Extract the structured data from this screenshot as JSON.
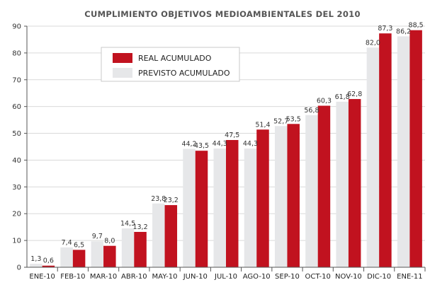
{
  "chart_data": {
    "type": "bar",
    "title": "CUMPLIMIENTO OBJETIVOS MEDIOAMBIENTALES DEL 2010",
    "xlabel": "",
    "ylabel": "",
    "ylim": [
      0,
      90
    ],
    "yticks": [
      0,
      10,
      20,
      30,
      40,
      50,
      60,
      70,
      80,
      90
    ],
    "grid": true,
    "legend_position": "top-left",
    "categories": [
      "ENE-10",
      "FEB-10",
      "MAR-10",
      "ABR-10",
      "MAY-10",
      "JUN-10",
      "JUL-10",
      "AGO-10",
      "SEP-10",
      "OCT-10",
      "NOV-10",
      "DIC-10",
      "ENE-11"
    ],
    "series": [
      {
        "name": "PREVISTO ACUMULADO",
        "color": "#e6e7e9",
        "values": [
          1.3,
          7.4,
          9.7,
          14.5,
          23.8,
          44.2,
          44.3,
          44.3,
          52.7,
          56.8,
          61.8,
          82.0,
          86.2
        ],
        "labels": [
          "1,3",
          "7,4",
          "9,7",
          "14,5",
          "23,8",
          "44,2",
          "44,3",
          "44,3",
          "52,7",
          "56,8",
          "61,8",
          "82,0",
          "86,2"
        ]
      },
      {
        "name": "REAL ACUMULADO",
        "color": "#c1121f",
        "values": [
          0.6,
          6.5,
          8.0,
          13.2,
          23.2,
          43.5,
          47.5,
          51.4,
          53.5,
          60.3,
          62.8,
          87.3,
          88.5
        ],
        "labels": [
          "0,6",
          "6,5",
          "8,0",
          "13,2",
          "23,2",
          "43,5",
          "47,5",
          "51,4",
          "53,5",
          "60,3",
          "62,8",
          "87,3",
          "88,5"
        ]
      }
    ],
    "legend": [
      {
        "name": "REAL ACUMULADO",
        "color": "#c1121f"
      },
      {
        "name": "PREVISTO ACUMULADO",
        "color": "#e6e7e9"
      }
    ]
  }
}
